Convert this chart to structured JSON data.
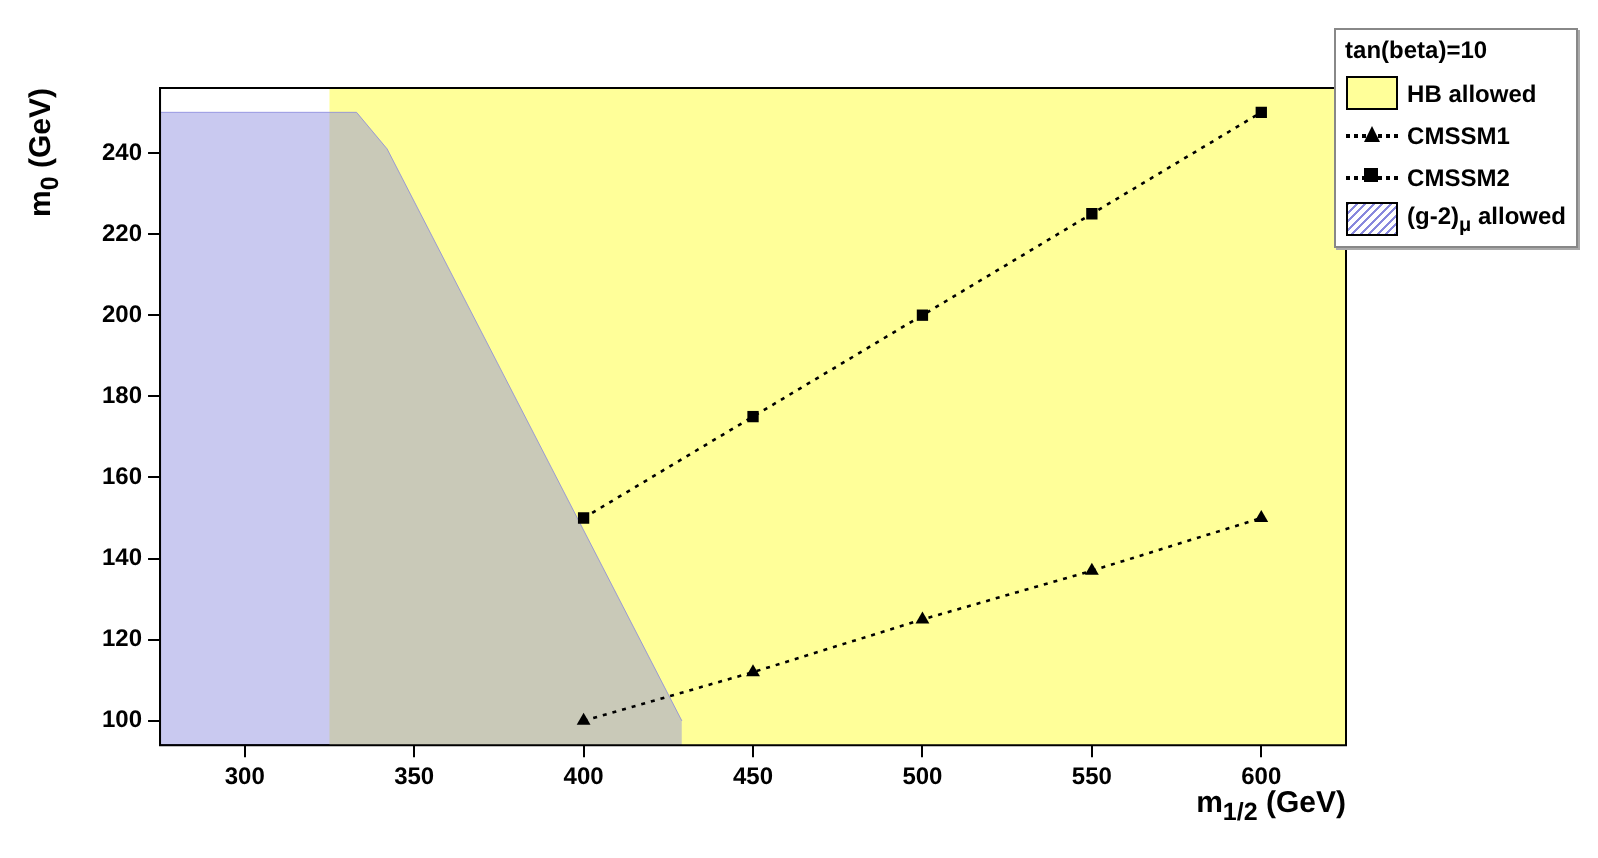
{
  "chart_data": {
    "type": "line",
    "xlabel": "m$_{1/2}$ (GeV)",
    "ylabel": "m$_{0}$ (GeV)",
    "legend_title": "tan(beta)=10",
    "legend": "top right",
    "grid": false,
    "xlim": [
      275,
      625
    ],
    "xticks": [
      300,
      350,
      400,
      450,
      500,
      550,
      600
    ],
    "ylim": [
      94,
      256
    ],
    "yticks": [
      100,
      120,
      140,
      160,
      180,
      200,
      220,
      240
    ],
    "bands": [
      {
        "axis": "x",
        "from": 325,
        "to": 625,
        "label": "HB allowed",
        "color": "#ffff99"
      }
    ],
    "series": [
      {
        "name": "CMSSM1",
        "type": "line",
        "color": "#000000",
        "marker": "triangle",
        "line_style": "dotted",
        "x": [
          400,
          450,
          500,
          550,
          600
        ],
        "values": [
          100,
          112,
          125,
          137,
          150
        ]
      },
      {
        "name": "CMSSM2",
        "type": "line",
        "color": "#000000",
        "marker": "square",
        "line_style": "dotted",
        "x": [
          400,
          450,
          500,
          550,
          600
        ],
        "values": [
          150,
          175,
          200,
          225,
          250
        ]
      },
      {
        "name": "(g-2)$_{μ}$ allowed",
        "type": "area",
        "color": "#8888dd",
        "x": [
          275,
          333,
          342,
          429
        ],
        "values": [
          250,
          250,
          241,
          100
        ]
      }
    ]
  }
}
